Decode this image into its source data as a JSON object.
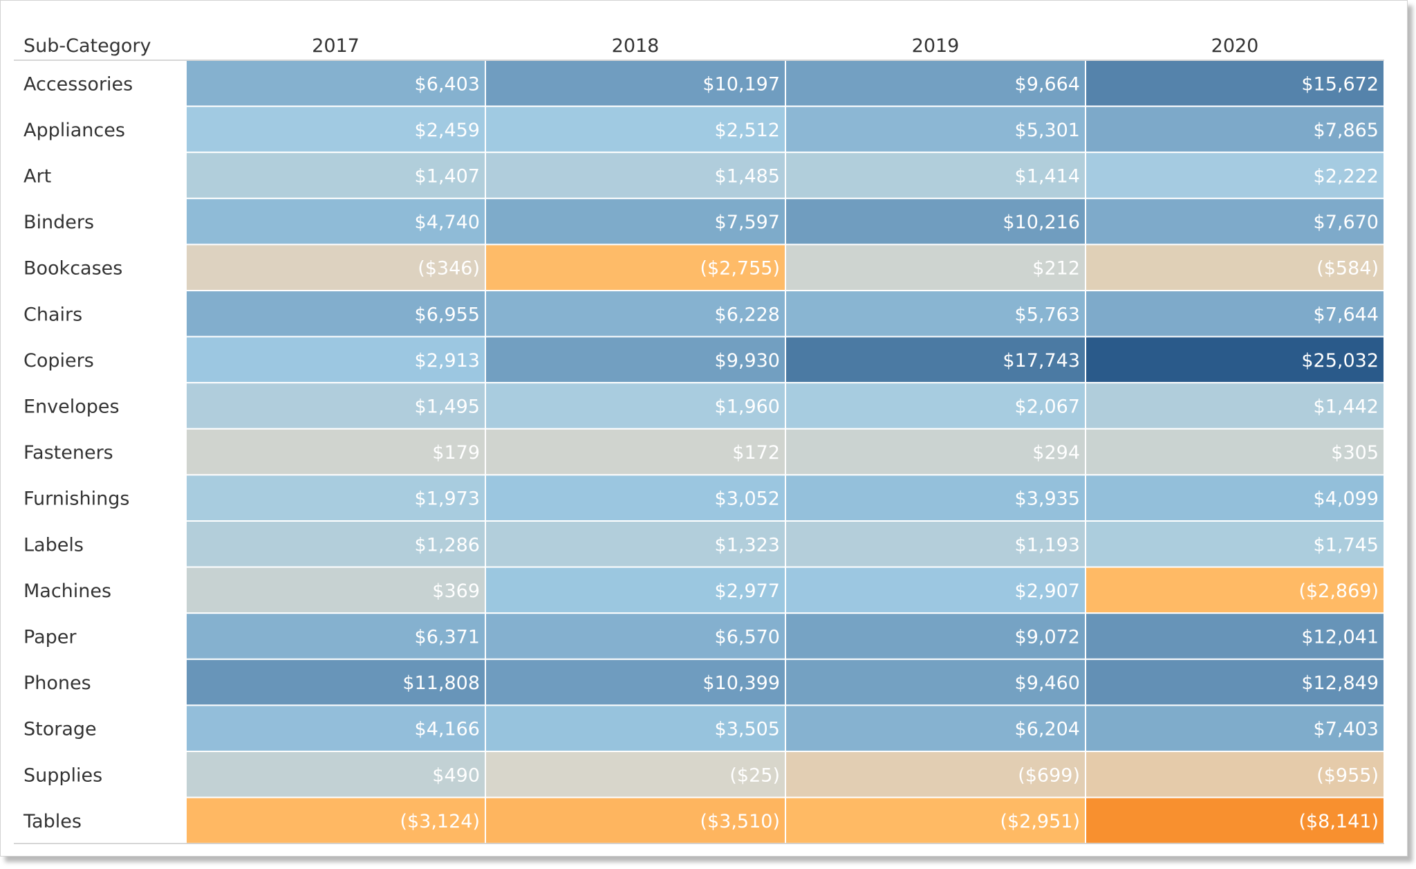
{
  "chart_data": {
    "type": "heatmap",
    "row_header": "Sub-Category",
    "columns": [
      "2017",
      "2018",
      "2019",
      "2020"
    ],
    "rows": [
      {
        "label": "Accessories",
        "values": [
          6403,
          10197,
          9664,
          15672
        ],
        "display": [
          "$6,403",
          "$10,197",
          "$9,664",
          "$15,672"
        ]
      },
      {
        "label": "Appliances",
        "values": [
          2459,
          2512,
          5301,
          7865
        ],
        "display": [
          "$2,459",
          "$2,512",
          "$5,301",
          "$7,865"
        ]
      },
      {
        "label": "Art",
        "values": [
          1407,
          1485,
          1414,
          2222
        ],
        "display": [
          "$1,407",
          "$1,485",
          "$1,414",
          "$2,222"
        ]
      },
      {
        "label": "Binders",
        "values": [
          4740,
          7597,
          10216,
          7670
        ],
        "display": [
          "$4,740",
          "$7,597",
          "$10,216",
          "$7,670"
        ]
      },
      {
        "label": "Bookcases",
        "values": [
          -346,
          -2755,
          212,
          -584
        ],
        "display": [
          "($346)",
          "($2,755)",
          "$212",
          "($584)"
        ]
      },
      {
        "label": "Chairs",
        "values": [
          6955,
          6228,
          5763,
          7644
        ],
        "display": [
          "$6,955",
          "$6,228",
          "$5,763",
          "$7,644"
        ]
      },
      {
        "label": "Copiers",
        "values": [
          2913,
          9930,
          17743,
          25032
        ],
        "display": [
          "$2,913",
          "$9,930",
          "$17,743",
          "$25,032"
        ]
      },
      {
        "label": "Envelopes",
        "values": [
          1495,
          1960,
          2067,
          1442
        ],
        "display": [
          "$1,495",
          "$1,960",
          "$2,067",
          "$1,442"
        ]
      },
      {
        "label": "Fasteners",
        "values": [
          179,
          172,
          294,
          305
        ],
        "display": [
          "$179",
          "$172",
          "$294",
          "$305"
        ]
      },
      {
        "label": "Furnishings",
        "values": [
          1973,
          3052,
          3935,
          4099
        ],
        "display": [
          "$1,973",
          "$3,052",
          "$3,935",
          "$4,099"
        ]
      },
      {
        "label": "Labels",
        "values": [
          1286,
          1323,
          1193,
          1745
        ],
        "display": [
          "$1,286",
          "$1,323",
          "$1,193",
          "$1,745"
        ]
      },
      {
        "label": "Machines",
        "values": [
          369,
          2977,
          2907,
          -2869
        ],
        "display": [
          "$369",
          "$2,977",
          "$2,907",
          "($2,869)"
        ]
      },
      {
        "label": "Paper",
        "values": [
          6371,
          6570,
          9072,
          12041
        ],
        "display": [
          "$6,371",
          "$6,570",
          "$9,072",
          "$12,041"
        ]
      },
      {
        "label": "Phones",
        "values": [
          11808,
          10399,
          9460,
          12849
        ],
        "display": [
          "$11,808",
          "$10,399",
          "$9,460",
          "$12,849"
        ]
      },
      {
        "label": "Storage",
        "values": [
          4166,
          3505,
          6204,
          7403
        ],
        "display": [
          "$4,166",
          "$3,505",
          "$6,204",
          "$7,403"
        ]
      },
      {
        "label": "Supplies",
        "values": [
          490,
          -25,
          -699,
          -955
        ],
        "display": [
          "$490",
          "($25)",
          "($699)",
          "($955)"
        ]
      },
      {
        "label": "Tables",
        "values": [
          -3124,
          -3510,
          -2951,
          -8141
        ],
        "display": [
          "($3,124)",
          "($3,510)",
          "($2,951)",
          "($8,141)"
        ]
      }
    ],
    "color_scale": {
      "negative_max": "#f8902f",
      "negative_light": "#ffbb66",
      "neutral": "#d8d6cc",
      "positive_light": "#9fcae3",
      "positive_max": "#2a5a8a"
    },
    "grid": false
  }
}
